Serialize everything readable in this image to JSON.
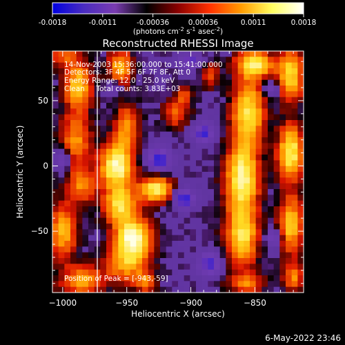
{
  "colorbar": {
    "ticks": [
      "-0.0018",
      "-0.0011",
      "-0.00036",
      "0.00036",
      "0.0011",
      "0.0018"
    ],
    "units_parts": [
      "(photons cm",
      "-2",
      " s",
      "-1",
      " asec",
      "-2",
      ")"
    ],
    "stops": [
      "#0000e0",
      "#4a2cc0",
      "#7a3cb0",
      "#000000",
      "#8a0000",
      "#ff3000",
      "#ff9a00",
      "#ffff60",
      "#ffffff"
    ]
  },
  "chart_data": {
    "type": "heatmap",
    "title": "Reconstructed RHESSI Image",
    "xlabel": "Heliocentric X (arcsec)",
    "ylabel": "Heliocentric Y (arcsec)",
    "xlim": [
      -1008,
      -812
    ],
    "ylim": [
      -97,
      88
    ],
    "x_ticks": [
      -1000,
      -950,
      -900,
      -850
    ],
    "y_ticks": [
      50,
      0,
      -50
    ],
    "limb_x": [
      -973,
      -973
    ],
    "limb_y": [
      88,
      -97
    ],
    "peak": {
      "x": -943,
      "y": -59
    },
    "annotations": [
      "14-Nov-2003 15:36:00.000 to 15:41:00.000",
      "Detectors: 3F 4F 5F 6F 7F 8F, Att 0",
      "Energy Range: 12.0 - 25.0 keV",
      "Clean     Total counts: 3.83E+03",
      "Position of Peak = [-943,-59]"
    ],
    "blobs": [
      {
        "x": -988,
        "y": 62,
        "sx": 8,
        "sy": 13,
        "v": 0.7
      },
      {
        "x": -990,
        "y": 20,
        "sx": 9,
        "sy": 14,
        "v": 0.55
      },
      {
        "x": -985,
        "y": -15,
        "sx": 8,
        "sy": 10,
        "v": 0.5
      },
      {
        "x": -1000,
        "y": -50,
        "sx": 8,
        "sy": 15,
        "v": 0.65
      },
      {
        "x": -985,
        "y": -88,
        "sx": 12,
        "sy": 8,
        "v": 0.6
      },
      {
        "x": -955,
        "y": 75,
        "sx": 7,
        "sy": 10,
        "v": 0.65
      },
      {
        "x": -950,
        "y": 30,
        "sx": 7,
        "sy": 12,
        "v": 0.55
      },
      {
        "x": -958,
        "y": 0,
        "sx": 9,
        "sy": 12,
        "v": 1.0
      },
      {
        "x": -955,
        "y": -30,
        "sx": 9,
        "sy": 10,
        "v": 0.8
      },
      {
        "x": -945,
        "y": -55,
        "sx": 10,
        "sy": 10,
        "v": 1.0
      },
      {
        "x": -950,
        "y": -75,
        "sx": 12,
        "sy": 10,
        "v": 0.6
      },
      {
        "x": -935,
        "y": -90,
        "sx": 6,
        "sy": 6,
        "v": 0.45
      },
      {
        "x": -927,
        "y": -18,
        "sx": 9,
        "sy": 7,
        "v": 0.9
      },
      {
        "x": -912,
        "y": 40,
        "sx": 7,
        "sy": 8,
        "v": 0.45
      },
      {
        "x": -905,
        "y": 55,
        "sx": 5,
        "sy": 6,
        "v": 0.35
      },
      {
        "x": -885,
        "y": 70,
        "sx": 5,
        "sy": 7,
        "v": 0.4
      },
      {
        "x": -860,
        "y": -10,
        "sx": 9,
        "sy": 20,
        "v": 0.95
      },
      {
        "x": -860,
        "y": -55,
        "sx": 9,
        "sy": 15,
        "v": 0.75
      },
      {
        "x": -855,
        "y": 42,
        "sx": 9,
        "sy": 18,
        "v": 0.8
      },
      {
        "x": -850,
        "y": 78,
        "sx": 10,
        "sy": 7,
        "v": 0.85
      },
      {
        "x": -857,
        "y": -90,
        "sx": 10,
        "sy": 6,
        "v": 0.5
      },
      {
        "x": -822,
        "y": 70,
        "sx": 7,
        "sy": 14,
        "v": 0.8
      },
      {
        "x": -822,
        "y": 10,
        "sx": 7,
        "sy": 15,
        "v": 0.9
      },
      {
        "x": -822,
        "y": -45,
        "sx": 7,
        "sy": 15,
        "v": 0.75
      },
      {
        "x": -820,
        "y": -85,
        "sx": 6,
        "sy": 8,
        "v": 0.5
      },
      {
        "x": -1000,
        "y": 85,
        "sx": 8,
        "sy": 6,
        "v": 0.4
      }
    ],
    "dips": [
      {
        "x": -925,
        "y": 5,
        "sx": 6,
        "sy": 6,
        "v": -0.9
      },
      {
        "x": -905,
        "y": -25,
        "sx": 5,
        "sy": 5,
        "v": -0.9
      },
      {
        "x": -890,
        "y": 25,
        "sx": 5,
        "sy": 5,
        "v": -0.8
      },
      {
        "x": -885,
        "y": -75,
        "sx": 6,
        "sy": 6,
        "v": -0.75
      },
      {
        "x": -900,
        "y": 80,
        "sx": 6,
        "sy": 4,
        "v": -0.6
      },
      {
        "x": -960,
        "y": 60,
        "sx": 4,
        "sy": 4,
        "v": -0.5
      },
      {
        "x": -835,
        "y": -55,
        "sx": 4,
        "sy": 5,
        "v": -0.6
      },
      {
        "x": -837,
        "y": 60,
        "sx": 4,
        "sy": 4,
        "v": -0.45
      },
      {
        "x": -1000,
        "y": 5,
        "sx": 4,
        "sy": 6,
        "v": -0.55
      }
    ]
  },
  "timestamp": "6-May-2022 23:46"
}
